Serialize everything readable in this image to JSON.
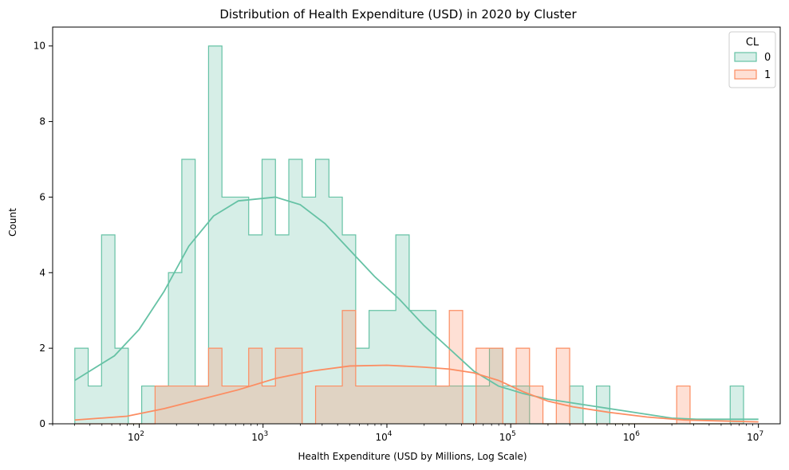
{
  "chart_data": {
    "type": "histogram",
    "title": "Distribution of Health Expenditure (USD) in 2020 by Cluster",
    "xlabel": "Health Expenditure (USD by Millions, Log Scale)",
    "ylabel": "Count",
    "x_scale": "log",
    "xlim": [
      20,
      15000000
    ],
    "ylim": [
      0,
      10.5
    ],
    "x_ticks": [
      {
        "value": 100,
        "base": "10",
        "exp": "2"
      },
      {
        "value": 1000,
        "base": "10",
        "exp": "3"
      },
      {
        "value": 10000,
        "base": "10",
        "exp": "4"
      },
      {
        "value": 100000,
        "base": "10",
        "exp": "5"
      },
      {
        "value": 1000000,
        "base": "10",
        "exp": "6"
      },
      {
        "value": 10000000,
        "base": "10",
        "exp": "7"
      }
    ],
    "y_ticks": [
      0,
      2,
      4,
      6,
      8,
      10
    ],
    "bins_log10": {
      "start": 1.48,
      "width": 0.108,
      "count": 50
    },
    "legend": {
      "title": "CL",
      "position": "upper right"
    },
    "series": [
      {
        "name": "0",
        "color": "#66c2a5",
        "fill": "rgba(102,194,165,0.27)",
        "counts": [
          2,
          1,
          5,
          2,
          0,
          1,
          1,
          4,
          7,
          1,
          10,
          6,
          6,
          5,
          7,
          5,
          7,
          6,
          7,
          6,
          5,
          2,
          3,
          3,
          5,
          3,
          3,
          1,
          1,
          1,
          1,
          2,
          1,
          1,
          0,
          0,
          0,
          1,
          0,
          1,
          0,
          0,
          0,
          0,
          0,
          0,
          0,
          0,
          0,
          1
        ],
        "kde": [
          [
            1.48,
            1.15
          ],
          [
            1.8,
            1.8
          ],
          [
            2.0,
            2.5
          ],
          [
            2.2,
            3.5
          ],
          [
            2.4,
            4.7
          ],
          [
            2.6,
            5.5
          ],
          [
            2.8,
            5.9
          ],
          [
            3.1,
            6.0
          ],
          [
            3.3,
            5.8
          ],
          [
            3.5,
            5.3
          ],
          [
            3.7,
            4.6
          ],
          [
            3.9,
            3.9
          ],
          [
            4.1,
            3.3
          ],
          [
            4.3,
            2.6
          ],
          [
            4.5,
            2.0
          ],
          [
            4.7,
            1.4
          ],
          [
            4.9,
            1.0
          ],
          [
            5.1,
            0.8
          ],
          [
            5.3,
            0.65
          ],
          [
            5.5,
            0.55
          ],
          [
            5.7,
            0.45
          ],
          [
            5.9,
            0.35
          ],
          [
            6.1,
            0.25
          ],
          [
            6.3,
            0.15
          ],
          [
            6.5,
            0.12
          ],
          [
            7.0,
            0.12
          ]
        ]
      },
      {
        "name": "1",
        "color": "#fc8d62",
        "fill": "rgba(252,141,98,0.27)",
        "counts": [
          0,
          0,
          0,
          0,
          0,
          0,
          1,
          1,
          1,
          1,
          2,
          1,
          1,
          2,
          1,
          2,
          2,
          0,
          1,
          1,
          3,
          1,
          1,
          1,
          1,
          1,
          1,
          1,
          3,
          0,
          2,
          2,
          0,
          2,
          1,
          0,
          2,
          0,
          0,
          0,
          0,
          0,
          0,
          0,
          0,
          1,
          0,
          0,
          0,
          0
        ],
        "kde": [
          [
            1.48,
            0.1
          ],
          [
            1.9,
            0.2
          ],
          [
            2.2,
            0.4
          ],
          [
            2.5,
            0.65
          ],
          [
            2.8,
            0.9
          ],
          [
            3.1,
            1.2
          ],
          [
            3.4,
            1.4
          ],
          [
            3.7,
            1.53
          ],
          [
            4.0,
            1.55
          ],
          [
            4.3,
            1.5
          ],
          [
            4.5,
            1.45
          ],
          [
            4.7,
            1.35
          ],
          [
            4.9,
            1.15
          ],
          [
            5.1,
            0.85
          ],
          [
            5.3,
            0.6
          ],
          [
            5.5,
            0.45
          ],
          [
            5.8,
            0.3
          ],
          [
            6.1,
            0.18
          ],
          [
            6.4,
            0.1
          ],
          [
            7.0,
            0.05
          ]
        ]
      }
    ]
  }
}
